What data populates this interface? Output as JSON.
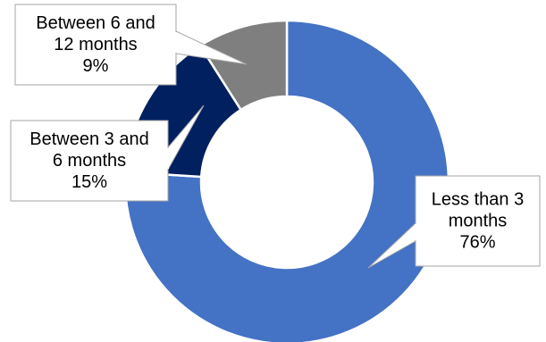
{
  "chart_data": {
    "type": "pie",
    "style": "donut",
    "series": [
      {
        "categories": [
          "Less than 3 months",
          "Between 3 and 6 months",
          "Between 6 and 12 months"
        ],
        "values": [
          76,
          15,
          9
        ]
      }
    ],
    "slices": [
      {
        "label_lines": [
          "Less than 3",
          "months"
        ],
        "percent": "76%",
        "value": 76,
        "color": "#4472C4"
      },
      {
        "label_lines": [
          "Between 3 and",
          "6 months"
        ],
        "percent": "15%",
        "value": 15,
        "color": "#002060"
      },
      {
        "label_lines": [
          "Between 6 and",
          "12 months"
        ],
        "percent": "9%",
        "value": 9,
        "color": "#7F7F7F"
      }
    ],
    "start_angle": "12 o'clock",
    "direction": "clockwise",
    "legend": "none",
    "data_labels": "callouts"
  }
}
